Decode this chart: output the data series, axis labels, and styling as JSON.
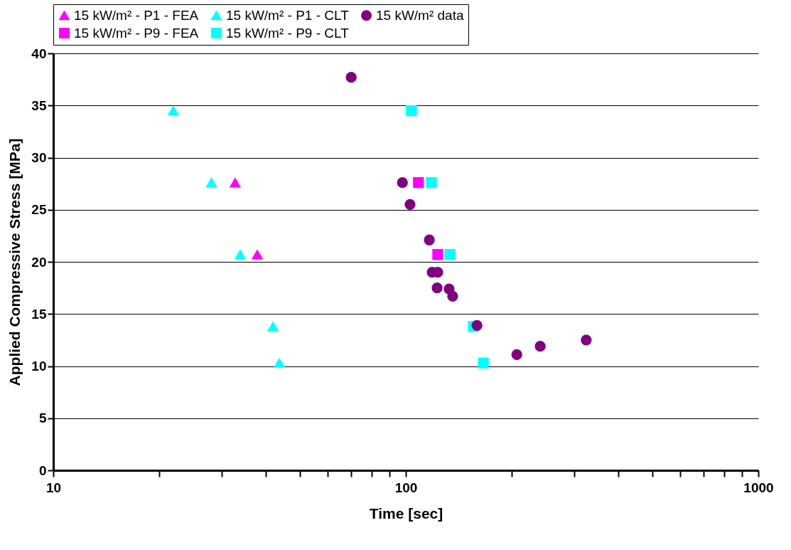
{
  "chart_data": {
    "type": "scatter",
    "xlabel": "Time [sec]",
    "ylabel": "Applied Compressive Stress [MPa]",
    "log": "x",
    "xlim": [
      10,
      1000
    ],
    "xticks": [
      10,
      {
        "value": 20,
        "label": null
      },
      {
        "value": 30,
        "label": null
      },
      {
        "value": 40,
        "label": null
      },
      {
        "value": 50,
        "label": null
      },
      {
        "value": 60,
        "label": null
      },
      {
        "value": 70,
        "label": null
      },
      {
        "value": 80,
        "label": null
      },
      {
        "value": 90,
        "label": null
      },
      100,
      {
        "value": 200,
        "label": null
      },
      {
        "value": 300,
        "label": null
      },
      {
        "value": 400,
        "label": null
      },
      {
        "value": 500,
        "label": null
      },
      {
        "value": 600,
        "label": null
      },
      {
        "value": 700,
        "label": null
      },
      {
        "value": 800,
        "label": null
      },
      {
        "value": 900,
        "label": null
      },
      1000
    ],
    "ylim": [
      0,
      40
    ],
    "yticks": [
      0,
      5,
      10,
      15,
      20,
      25,
      30,
      35,
      40
    ],
    "grid": "y",
    "legend": "top",
    "series": [
      {
        "name": "15 kW/m² - P1 - FEA",
        "color": "#ff00ff",
        "marker": "triangle",
        "x": [
          32.8,
          37.9
        ],
        "values": [
          27.6,
          20.7
        ]
      },
      {
        "name": "15 kW/m² - P1 - CLT",
        "color": "#00ffff",
        "marker": "triangle",
        "x": [
          21.9,
          28.1,
          33.9,
          42.0,
          43.8
        ],
        "values": [
          34.5,
          27.6,
          20.7,
          13.8,
          10.3
        ]
      },
      {
        "name": "15 kW/m² data",
        "color": "#800080",
        "marker": "circle",
        "x": [
          70.0,
          97.8,
          102.8,
          116.6,
          118.8,
          123.2,
          122.7,
          132.7,
          135.8,
          159.2,
          206.5,
          240.6,
          325
        ],
        "values": [
          37.7,
          27.6,
          25.5,
          22.1,
          19.0,
          19.0,
          17.5,
          17.4,
          16.7,
          13.9,
          11.1,
          11.9,
          12.5
        ]
      },
      {
        "name": "15 kW/m² - P9 - FEA",
        "color": "#ff00ff",
        "marker": "square",
        "x": [
          108.6,
          123.2
        ],
        "values": [
          27.6,
          20.7
        ]
      },
      {
        "name": "15 kW/m² - P9 - CLT",
        "color": "#00ffff",
        "marker": "square",
        "x": [
          103.7,
          118.2,
          133.4,
          155.5,
          165.9
        ],
        "values": [
          34.5,
          27.6,
          20.7,
          13.8,
          10.3
        ]
      }
    ]
  }
}
